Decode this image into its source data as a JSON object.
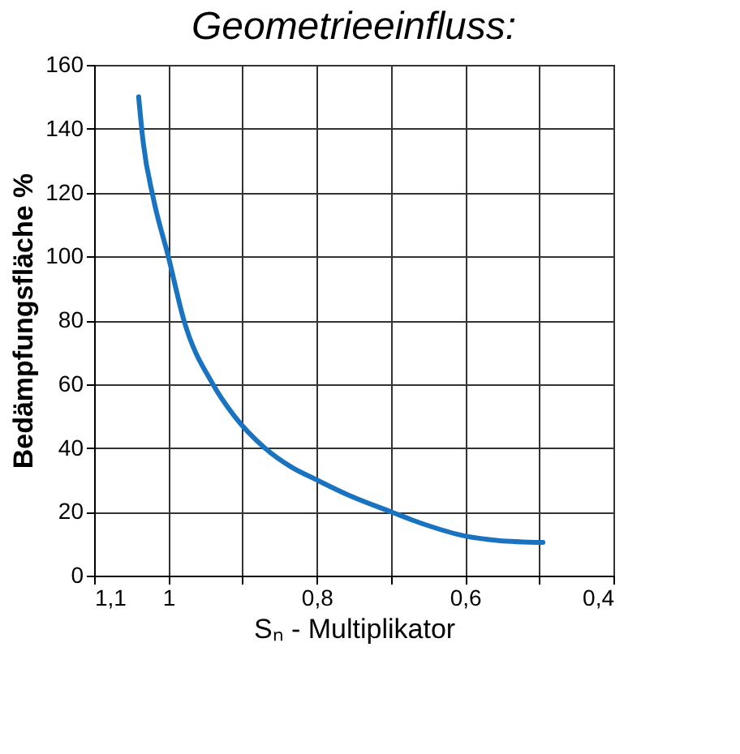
{
  "chart_data": {
    "type": "line",
    "title": "Geometrieeinfluss:",
    "xlabel": "Sₙ - Multiplikator",
    "ylabel": "Bedämpfungsfläche %",
    "x": [
      1.04,
      1.034,
      1.02,
      1.0,
      0.979,
      0.94,
      0.911,
      0.87,
      0.834,
      0.8,
      0.755,
      0.7,
      0.654,
      0.6,
      0.555,
      0.495
    ],
    "series": [
      {
        "color": "#1a73c0",
        "values": [
          150,
          136,
          118,
          100,
          80,
          60,
          50,
          40,
          34,
          30,
          25,
          20,
          16,
          12.4,
          11,
          10.4
        ]
      }
    ],
    "xlim": [
      1.1,
      0.4
    ],
    "xticks": [
      {
        "value": 1.1,
        "label": "1,1"
      },
      {
        "value": 1.0,
        "label": "1"
      },
      {
        "value": 0.9,
        "label": null
      },
      {
        "value": 0.8,
        "label": "0,8"
      },
      {
        "value": 0.7,
        "label": null
      },
      {
        "value": 0.6,
        "label": "0,6"
      },
      {
        "value": 0.5,
        "label": null
      },
      {
        "value": 0.4,
        "label": "0,4"
      }
    ],
    "ylim": [
      0,
      160
    ],
    "yticks": [
      0,
      20,
      40,
      60,
      80,
      100,
      120,
      140,
      160
    ],
    "grid": true,
    "marker": "none",
    "line_style": "solid"
  }
}
